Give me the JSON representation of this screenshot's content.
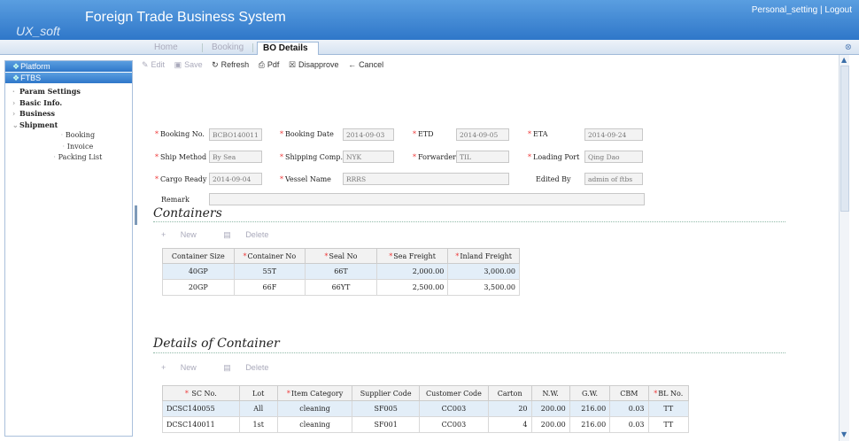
{
  "header": {
    "title": "Foreign Trade Business System",
    "brand": "UX_soft",
    "links": [
      "Personal_setting",
      "Logout"
    ],
    "link_sep": "|"
  },
  "tabs": [
    "Home",
    "Booking",
    "BO Details"
  ],
  "sidebar": {
    "platform": "Platform",
    "ftbs": "FTBS",
    "items": [
      {
        "label": "Param Settings",
        "bold": true
      },
      {
        "label": "Basic Info.",
        "bold": true
      },
      {
        "label": "Business",
        "bold": true
      },
      {
        "label": "Shipment",
        "bold": true
      },
      {
        "label": "Booking",
        "bold": false
      },
      {
        "label": "Invoice",
        "bold": false
      },
      {
        "label": "Packing List",
        "bold": false
      }
    ]
  },
  "toolbar": {
    "edit": "Edit",
    "save": "Save",
    "refresh": "Refresh",
    "pdf": "Pdf",
    "disapprove": "Disapprove",
    "cancel": "Cancel"
  },
  "form": {
    "booking_no": {
      "label": "Booking No.",
      "value": "BCBO140011"
    },
    "booking_date": {
      "label": "Booking Date",
      "value": "2014-09-03"
    },
    "etd": {
      "label": "ETD",
      "value": "2014-09-05"
    },
    "eta": {
      "label": "ETA",
      "value": "2014-09-24"
    },
    "ship_method": {
      "label": "Ship Method",
      "value": "By Sea"
    },
    "shipping_comp": {
      "label": "Shipping Comp.",
      "value": "NYK"
    },
    "forwarder": {
      "label": "Forwarder",
      "value": "TIL"
    },
    "loading_port": {
      "label": "Loading Port",
      "value": "Qing Dao"
    },
    "cargo_ready": {
      "label": "Cargo Ready",
      "value": "2014-09-04"
    },
    "vessel_name": {
      "label": "Vessel Name",
      "value": "RRRS"
    },
    "edited_by": {
      "label": "Edited By",
      "value": "admin of ftbs"
    },
    "remark": {
      "label": "Remark",
      "value": ""
    }
  },
  "containers": {
    "title": "Containers",
    "new": "New",
    "delete": "Delete",
    "headers": [
      "Container Size",
      "Container No",
      "Seal No",
      "Sea Freight",
      "Inland Freight"
    ],
    "rows": [
      [
        "40GP",
        "55T",
        "66T",
        "2,000.00",
        "3,000.00"
      ],
      [
        "20GP",
        "66F",
        "66YT",
        "2,500.00",
        "3,500.00"
      ]
    ]
  },
  "details": {
    "title": "Details of Container",
    "new": "New",
    "delete": "Delete",
    "headers": [
      "SC No.",
      "Lot",
      "Item Category",
      "Supplier Code",
      "Customer Code",
      "Carton",
      "N.W.",
      "G.W.",
      "CBM",
      "BL No."
    ],
    "rows": [
      [
        "DCSC140055",
        "All",
        "cleaning",
        "SF005",
        "CC003",
        "20",
        "200.00",
        "216.00",
        "0.03",
        "TT"
      ],
      [
        "DCSC140011",
        "1st",
        "cleaning",
        "SF001",
        "CC003",
        "4",
        "200.00",
        "216.00",
        "0.03",
        "TT"
      ]
    ]
  }
}
